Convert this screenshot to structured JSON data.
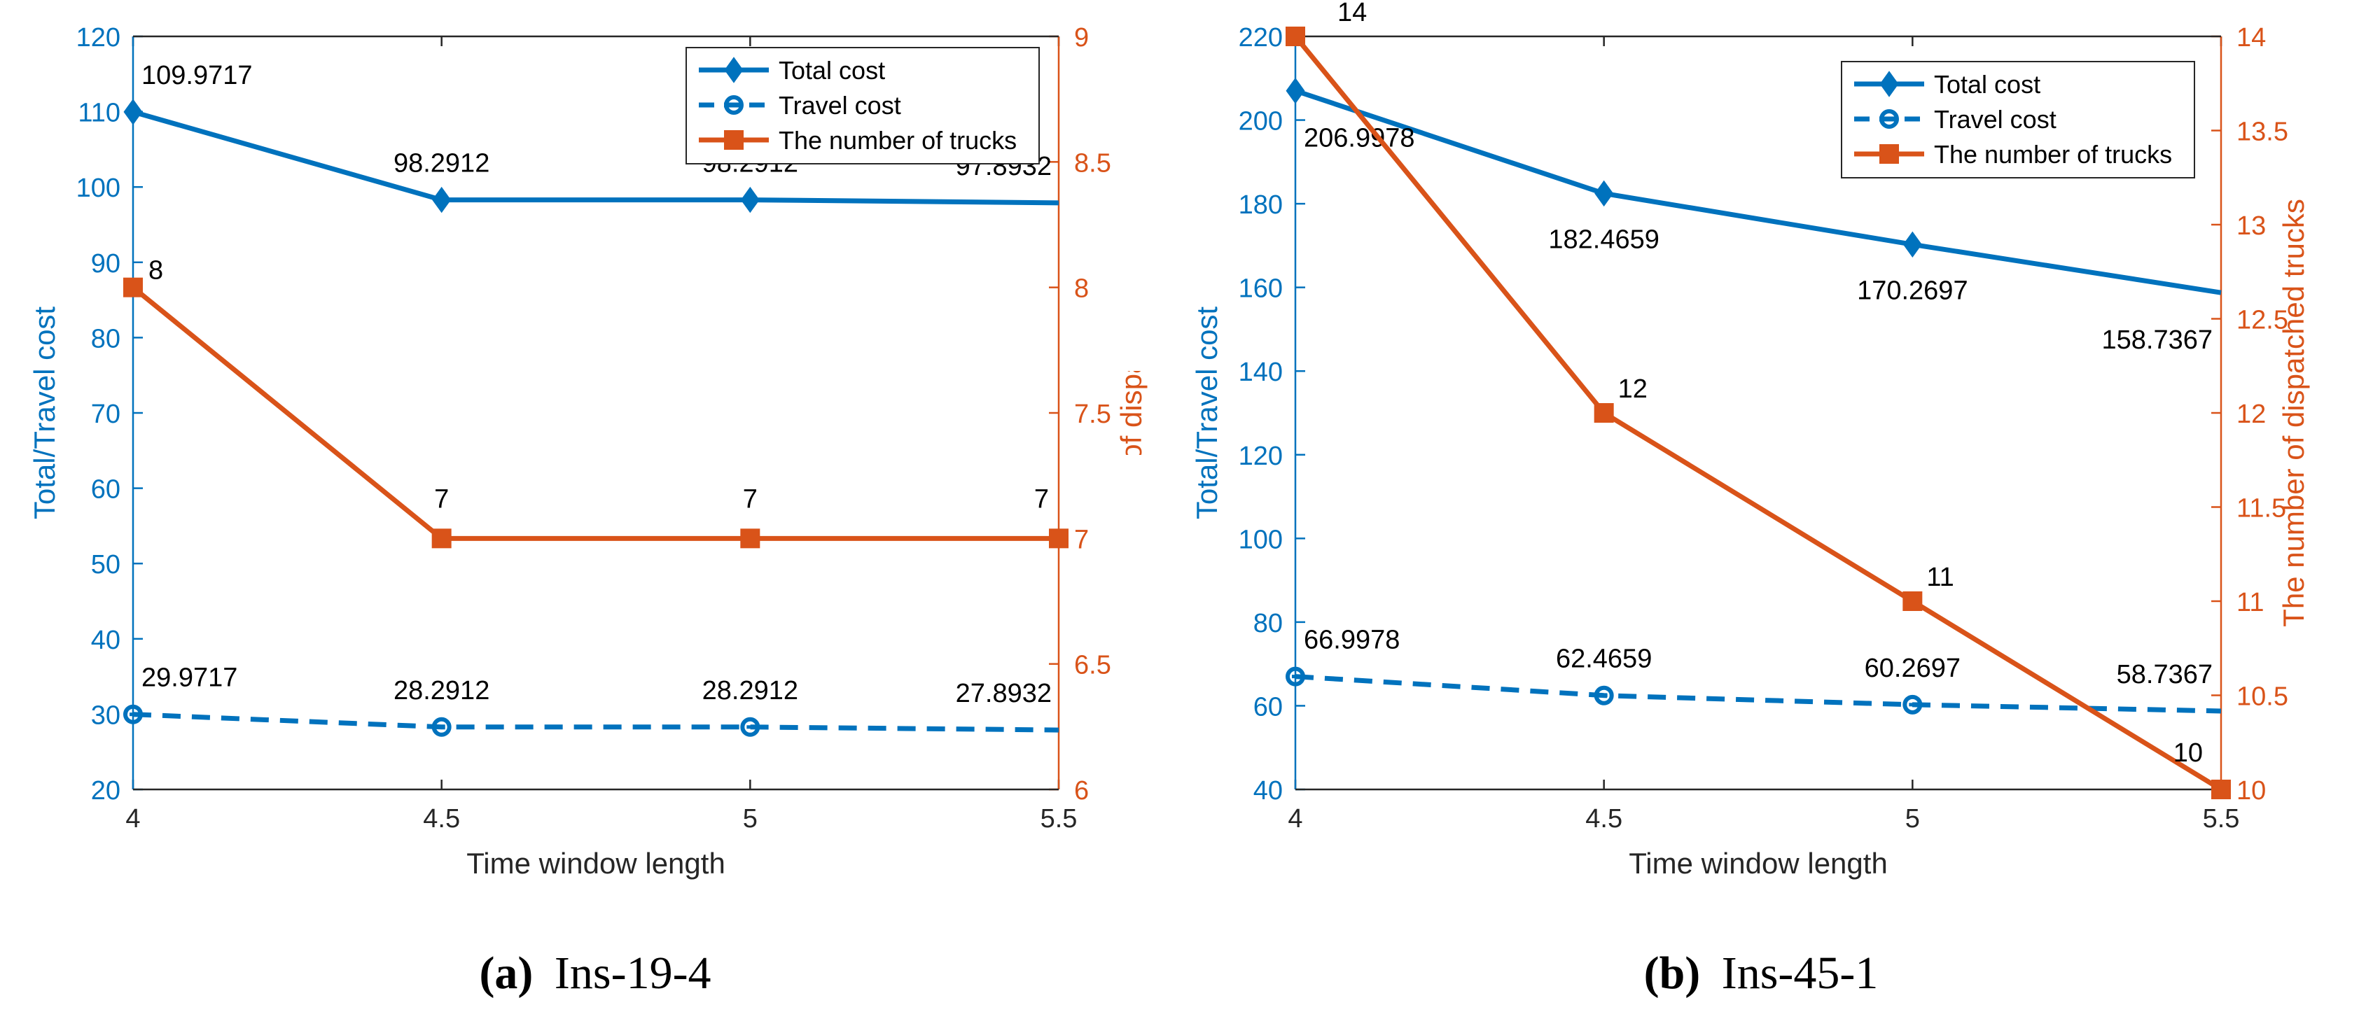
{
  "colors": {
    "cost": "#0072BD",
    "trucks": "#D95319",
    "axis_text": "#000000"
  },
  "chart_data": [
    {
      "type": "line",
      "panel": "a",
      "caption_letter": "(a)",
      "caption_text": "Ins-19-4",
      "xlabel": "Time window length",
      "ylabel_left": "Total/Travel cost",
      "ylabel_right": "The number of dispatched trucks",
      "x": [
        4,
        4.5,
        5,
        5.5
      ],
      "x_tick_labels": [
        "4",
        "4.5",
        "5",
        "5.5"
      ],
      "xlim": [
        4,
        5.5
      ],
      "ylim_left": [
        20,
        120
      ],
      "yticks_left": [
        "20",
        "30",
        "40",
        "50",
        "60",
        "70",
        "80",
        "90",
        "100",
        "110",
        "120"
      ],
      "ylim_right": [
        6,
        9
      ],
      "yticks_right": [
        "6",
        "6.5",
        "7",
        "7.5",
        "8",
        "8.5",
        "9"
      ],
      "legend_position": "top-right",
      "series": [
        {
          "name": "Total cost",
          "axis": "left",
          "style": "solid",
          "marker": "diamond",
          "values": [
            109.9717,
            98.2912,
            98.2912,
            97.8932
          ],
          "labels": [
            "109.9717",
            "98.2912",
            "98.2912",
            "97.8932"
          ]
        },
        {
          "name": "Travel cost",
          "axis": "left",
          "style": "dashed",
          "marker": "circle",
          "values": [
            29.9717,
            28.2912,
            28.2912,
            27.8932
          ],
          "labels": [
            "29.9717",
            "28.2912",
            "28.2912",
            "27.8932"
          ]
        },
        {
          "name": "The number of trucks",
          "axis": "right",
          "style": "solid",
          "marker": "square",
          "values": [
            8,
            7,
            7,
            7
          ],
          "labels": [
            "8",
            "7",
            "7",
            "7"
          ]
        }
      ]
    },
    {
      "type": "line",
      "panel": "b",
      "caption_letter": "(b)",
      "caption_text": "Ins-45-1",
      "xlabel": "Time window length",
      "ylabel_left": "Total/Travel cost",
      "ylabel_right": "The number of dispatched trucks",
      "x": [
        4,
        4.5,
        5,
        5.5
      ],
      "x_tick_labels": [
        "4",
        "4.5",
        "5",
        "5.5"
      ],
      "xlim": [
        4,
        5.5
      ],
      "ylim_left": [
        40,
        220
      ],
      "yticks_left": [
        "40",
        "60",
        "80",
        "100",
        "120",
        "140",
        "160",
        "180",
        "200",
        "220"
      ],
      "ylim_right": [
        10,
        14
      ],
      "yticks_right": [
        "10",
        "10.5",
        "11",
        "11.5",
        "12",
        "12.5",
        "13",
        "13.5",
        "14"
      ],
      "legend_position": "top-right",
      "series": [
        {
          "name": "Total cost",
          "axis": "left",
          "style": "solid",
          "marker": "diamond",
          "values": [
            206.9978,
            182.4659,
            170.2697,
            158.7367
          ],
          "labels": [
            "206.9978",
            "182.4659",
            "170.2697",
            "158.7367"
          ]
        },
        {
          "name": "Travel cost",
          "axis": "left",
          "style": "dashed",
          "marker": "circle",
          "values": [
            66.9978,
            62.4659,
            60.2697,
            58.7367
          ],
          "labels": [
            "66.9978",
            "62.4659",
            "60.2697",
            "58.7367"
          ]
        },
        {
          "name": "The number of trucks",
          "axis": "right",
          "style": "solid",
          "marker": "square",
          "values": [
            14,
            12,
            11,
            10
          ],
          "labels": [
            "14",
            "12",
            "11",
            "10"
          ]
        }
      ]
    }
  ]
}
